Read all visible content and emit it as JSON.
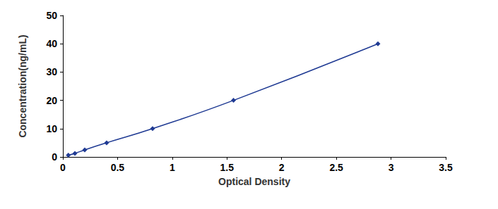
{
  "chart_data": {
    "type": "line",
    "x_label": "Optical Density",
    "y_label": "Concentration(ng/mL)",
    "x": [
      0.05,
      0.11,
      0.2,
      0.4,
      0.82,
      1.56,
      2.88
    ],
    "values": [
      0.625,
      1.25,
      2.5,
      5,
      10,
      20,
      40
    ],
    "color": "#1f3a93",
    "marker": "diamond",
    "line_style": "solid",
    "xlim": [
      0,
      3.5
    ],
    "xticks": [
      0,
      0.5,
      1,
      1.5,
      2,
      2.5,
      3,
      3.5
    ],
    "ylim": [
      0,
      50
    ],
    "yticks": [
      0,
      10,
      20,
      30,
      40,
      50
    ],
    "grid": false
  }
}
